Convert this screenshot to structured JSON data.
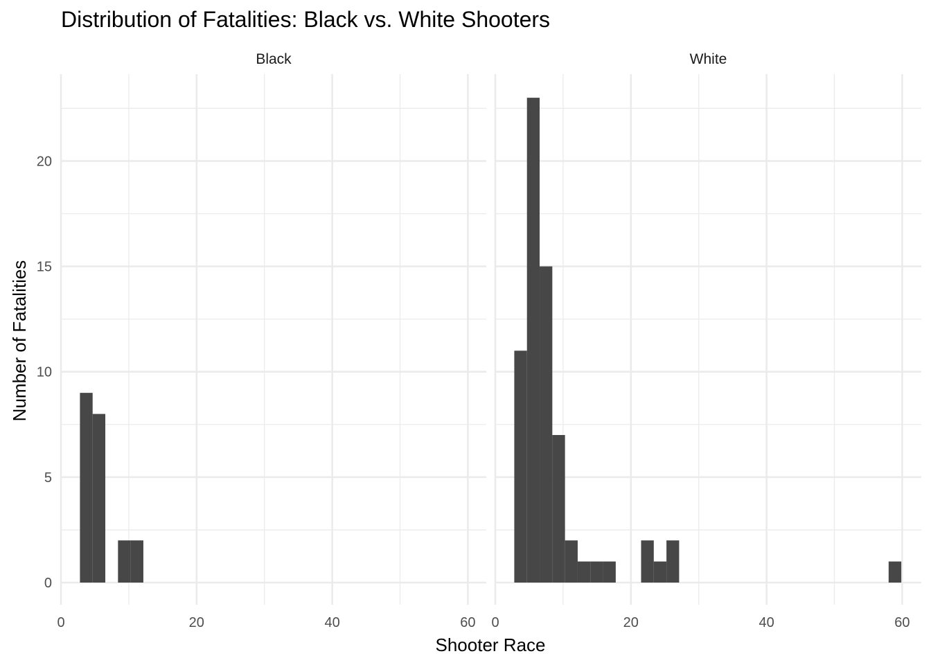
{
  "chart_data": {
    "type": "bar",
    "title": "Distribution of Fatalities: Black vs. White Shooters",
    "xlabel": "Shooter Race",
    "ylabel": "Number of Fatalities",
    "xlim": [
      0,
      61
    ],
    "ylim": [
      0,
      23
    ],
    "x_ticks": [
      0,
      20,
      40,
      60
    ],
    "y_ticks": [
      0,
      5,
      10,
      15,
      20
    ],
    "grid": true,
    "bar_color": "#474747",
    "bin_width": 1.87,
    "panels": [
      {
        "name": "Black",
        "bins": [
          {
            "x0": 2.8,
            "x1": 4.67,
            "count": 9
          },
          {
            "x0": 4.67,
            "x1": 6.54,
            "count": 8
          },
          {
            "x0": 8.41,
            "x1": 10.28,
            "count": 2
          },
          {
            "x0": 10.28,
            "x1": 12.15,
            "count": 2
          }
        ]
      },
      {
        "name": "White",
        "bins": [
          {
            "x0": 2.8,
            "x1": 4.67,
            "count": 11
          },
          {
            "x0": 4.67,
            "x1": 6.54,
            "count": 23
          },
          {
            "x0": 6.54,
            "x1": 8.41,
            "count": 15
          },
          {
            "x0": 8.41,
            "x1": 10.28,
            "count": 7
          },
          {
            "x0": 10.28,
            "x1": 12.15,
            "count": 2
          },
          {
            "x0": 12.15,
            "x1": 14.02,
            "count": 1
          },
          {
            "x0": 14.02,
            "x1": 15.89,
            "count": 1
          },
          {
            "x0": 15.89,
            "x1": 17.76,
            "count": 1
          },
          {
            "x0": 21.5,
            "x1": 23.37,
            "count": 2
          },
          {
            "x0": 23.37,
            "x1": 25.24,
            "count": 1
          },
          {
            "x0": 25.24,
            "x1": 27.11,
            "count": 2
          },
          {
            "x0": 58.0,
            "x1": 59.87,
            "count": 1
          }
        ]
      }
    ]
  }
}
